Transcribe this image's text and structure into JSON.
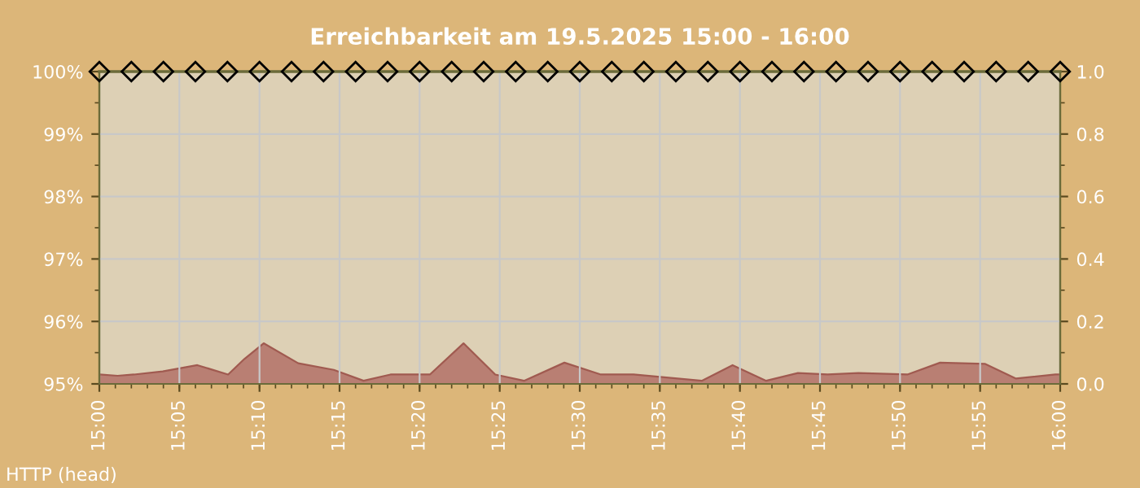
{
  "chart_data": {
    "type": "line",
    "title": "Erreichbarkeit am 19.5.2025 15:00 - 16:00",
    "annotations": [
      "HTTP (head)"
    ],
    "xlim": [
      15,
      16
    ],
    "xticks": [
      {
        "value": 15,
        "label": "15:00"
      },
      {
        "value": 15.0833,
        "label": "15:05"
      },
      {
        "value": 15.1667,
        "label": "15:10"
      },
      {
        "value": 15.25,
        "label": "15:15"
      },
      {
        "value": 15.3333,
        "label": "15:20"
      },
      {
        "value": 15.4167,
        "label": "15:25"
      },
      {
        "value": 15.5,
        "label": "15:30"
      },
      {
        "value": 15.5833,
        "label": "15:35"
      },
      {
        "value": 15.6667,
        "label": "15:40"
      },
      {
        "value": 15.75,
        "label": "15:45"
      },
      {
        "value": 15.8333,
        "label": "15:50"
      },
      {
        "value": 15.9167,
        "label": "15:55"
      },
      {
        "value": 16,
        "label": "16:00"
      }
    ],
    "ylim": [
      95,
      100
    ],
    "yticks": [
      {
        "value": 95,
        "label": "95%"
      },
      {
        "value": 96,
        "label": "96%"
      },
      {
        "value": 97,
        "label": "97%"
      },
      {
        "value": 98,
        "label": "98%"
      },
      {
        "value": 99,
        "label": "99%"
      },
      {
        "value": 100,
        "label": "100%"
      }
    ],
    "y2lim": [
      0,
      1
    ],
    "y2ticks": [
      {
        "value": 0,
        "label": "0.0"
      },
      {
        "value": 0.2,
        "label": "0.2"
      },
      {
        "value": 0.4,
        "label": "0.4"
      },
      {
        "value": 0.6,
        "label": "0.6"
      },
      {
        "value": 0.8,
        "label": "0.8"
      },
      {
        "value": 1,
        "label": "1.0"
      }
    ],
    "grid": true,
    "legend": false,
    "series": [
      {
        "type": "area",
        "axis": "y2",
        "color": "#b97f73",
        "x": [
          15,
          15.019,
          15.036,
          15.066,
          15.102,
          15.134,
          15.151,
          15.171,
          15.207,
          15.244,
          15.275,
          15.303,
          15.344,
          15.379,
          15.412,
          15.442,
          15.484,
          15.522,
          15.556,
          15.627,
          15.659,
          15.694,
          15.727,
          15.758,
          15.79,
          15.841,
          15.875,
          15.922,
          15.954,
          15.995,
          16
        ],
        "values": [
          0.03,
          0.026,
          0.03,
          0.04,
          0.06,
          0.03,
          0.08,
          0.13,
          0.066,
          0.045,
          0.01,
          0.03,
          0.03,
          0.13,
          0.03,
          0.01,
          0.068,
          0.03,
          0.03,
          0.01,
          0.06,
          0.01,
          0.035,
          0.03,
          0.035,
          0.03,
          0.068,
          0.064,
          0.017,
          0.03,
          0.03
        ]
      },
      {
        "color": "#6b6b3a",
        "marker": "diamond",
        "x": [
          15,
          15.0333,
          15.0667,
          15.1,
          15.1333,
          15.1667,
          15.2,
          15.2333,
          15.2667,
          15.3,
          15.3333,
          15.3667,
          15.4,
          15.4333,
          15.4667,
          15.5,
          15.5333,
          15.5667,
          15.6,
          15.6333,
          15.6667,
          15.7,
          15.7333,
          15.7667,
          15.8,
          15.8333,
          15.8667,
          15.9,
          15.9333,
          15.9667,
          16
        ],
        "values": [
          100,
          100,
          100,
          100,
          100,
          100,
          100,
          100,
          100,
          100,
          100,
          100,
          100,
          100,
          100,
          100,
          100,
          100,
          100,
          100,
          100,
          100,
          100,
          100,
          100,
          100,
          100,
          100,
          100,
          100,
          100
        ]
      }
    ]
  }
}
